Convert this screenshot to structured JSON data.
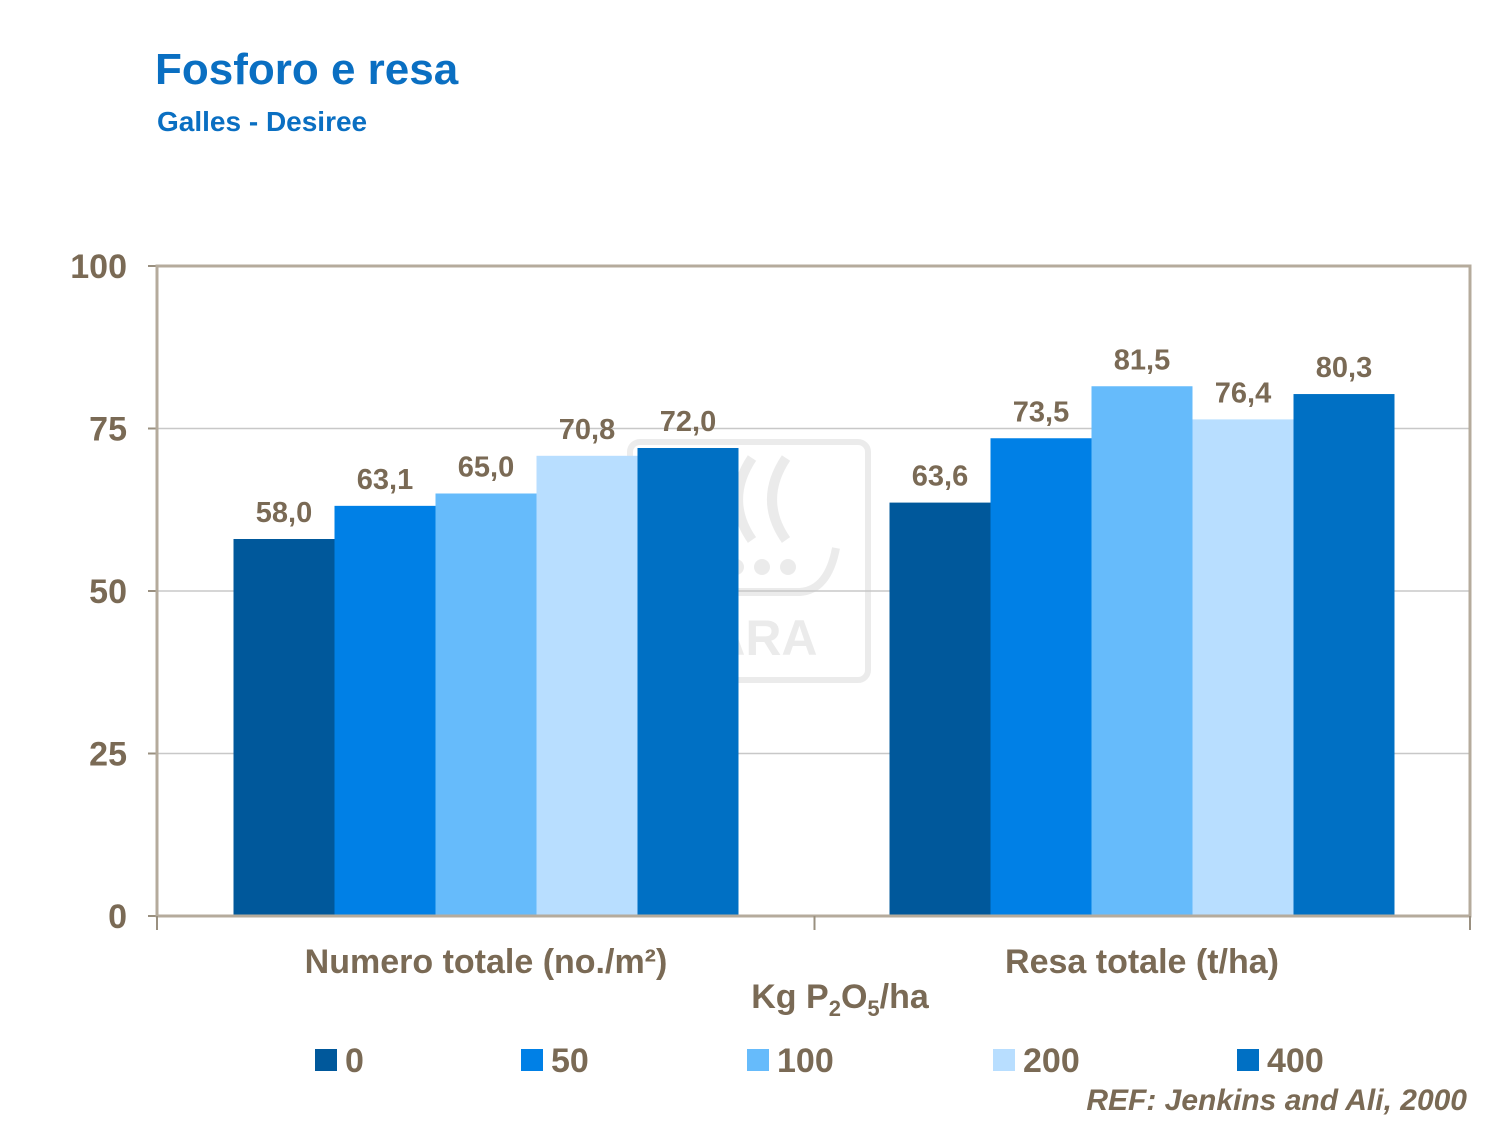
{
  "header": {
    "title": "Fosforo e resa",
    "subtitle": "Galles  - Desiree"
  },
  "watermark": {
    "text": "YARA",
    "icon": "yara-viking-ship-logo"
  },
  "reference": "REF: Jenkins and Ali, 2000",
  "colors": {
    "text": "#7a6a55",
    "title": "#0a6fc2",
    "series": [
      "#00589b",
      "#0080e6",
      "#66bbfb",
      "#b8deff",
      "#0070c4"
    ]
  },
  "chart_data": {
    "type": "bar",
    "title": "Fosforo e resa",
    "subtitle": "Galles  - Desiree",
    "categories": [
      "Numero totale (no./m²)",
      "Resa totale (t/ha)"
    ],
    "xlabel": "Kg P2O5/ha",
    "xlabel_parts": {
      "a": "Kg P",
      "sub1": "2",
      "b": "O",
      "sub2": "5",
      "c": "/ha"
    },
    "ylabel": "",
    "ylim": [
      0,
      100
    ],
    "yticks": [
      0,
      25,
      50,
      75,
      100
    ],
    "grid": true,
    "legend": "bottom",
    "data_label_format": "comma-decimal-1",
    "series": [
      {
        "name": "0",
        "values": [
          58.0,
          63.6
        ],
        "color": "#00589b"
      },
      {
        "name": "50",
        "values": [
          63.1,
          73.5
        ],
        "color": "#0080e6"
      },
      {
        "name": "100",
        "values": [
          65.0,
          81.5
        ],
        "color": "#66bbfb"
      },
      {
        "name": "200",
        "values": [
          70.8,
          76.4
        ],
        "color": "#b8deff"
      },
      {
        "name": "400",
        "values": [
          72.0,
          80.3
        ],
        "color": "#0070c4"
      }
    ]
  }
}
